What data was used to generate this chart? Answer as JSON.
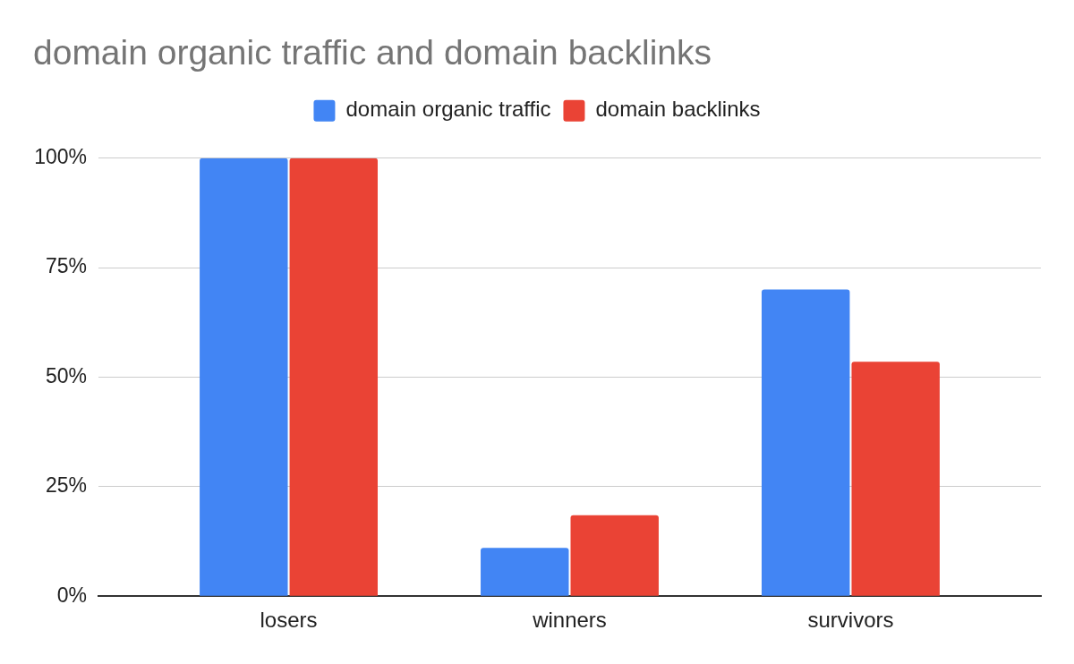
{
  "chart_data": {
    "type": "bar",
    "title": "domain organic traffic and domain backlinks",
    "categories": [
      "losers",
      "winners",
      "survivors"
    ],
    "series": [
      {
        "name": "domain organic traffic",
        "color": "#4285f4",
        "values": [
          100,
          11,
          70
        ]
      },
      {
        "name": "domain backlinks",
        "color": "#ea4335",
        "values": [
          100,
          18.5,
          53.5
        ]
      }
    ],
    "ylim": [
      0,
      100
    ],
    "yticks": [
      {
        "value": 0,
        "label": "0%"
      },
      {
        "value": 25,
        "label": "25%"
      },
      {
        "value": 50,
        "label": "50%"
      },
      {
        "value": 75,
        "label": "75%"
      },
      {
        "value": 100,
        "label": "100%"
      }
    ],
    "grid": "y",
    "legend": "top"
  }
}
